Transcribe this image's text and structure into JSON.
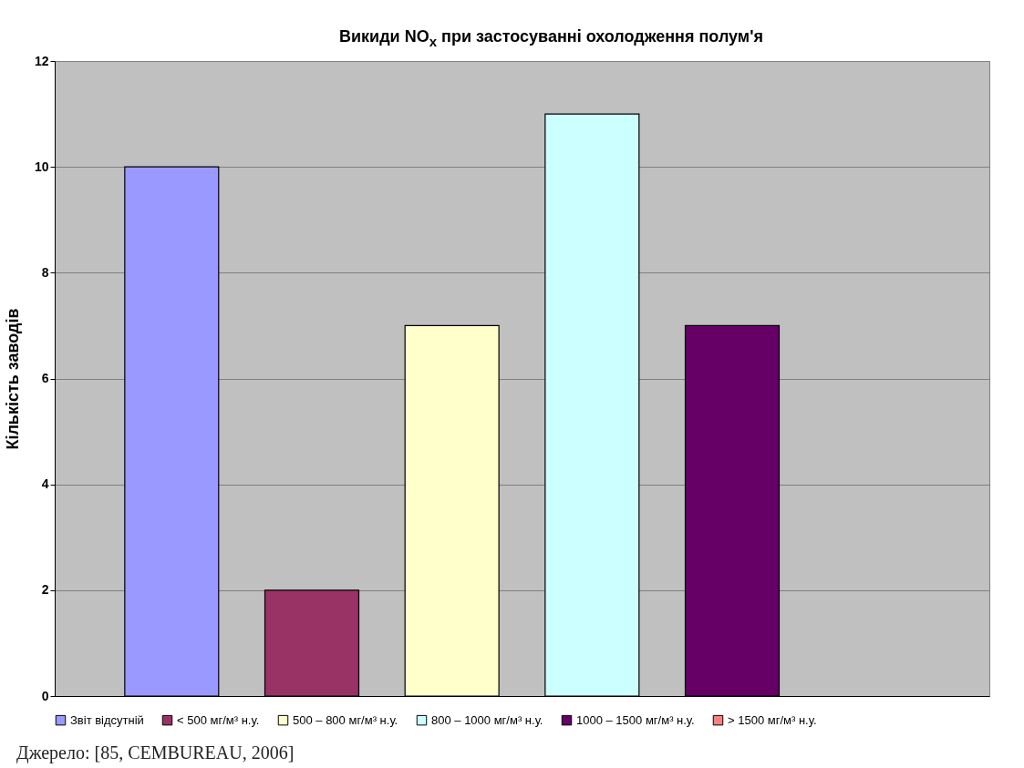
{
  "chart_data": {
    "type": "bar",
    "title": "Викиди NO$_{x}$ при застосуванні охолодження полум'я",
    "ylabel": "Кількість заводів",
    "categories": [
      null,
      null,
      null,
      null,
      null,
      null
    ],
    "series": [
      {
        "name": "Звіт відсутній",
        "color": "#9999ff",
        "values": [
          10,
          null,
          null,
          null,
          null,
          null
        ]
      },
      {
        "name": "< 500 мг/м³ н.у.",
        "color": "#993366",
        "values": [
          null,
          2,
          null,
          null,
          null,
          null
        ]
      },
      {
        "name": "500 – 800 мг/м³ н.у.",
        "color": "#ffffcc",
        "values": [
          null,
          null,
          7,
          null,
          null,
          null
        ]
      },
      {
        "name": "800 – 1000 мг/м³ н.у.",
        "color": "#ccffff",
        "values": [
          null,
          null,
          null,
          11,
          null,
          null
        ]
      },
      {
        "name": "1000 – 1500 мг/м³ н.у.",
        "color": "#660066",
        "values": [
          null,
          null,
          null,
          null,
          7,
          null
        ]
      },
      {
        "name": "> 1500 мг/м³ н.у.",
        "color": "#ff8080",
        "values": [
          null,
          null,
          null,
          null,
          null,
          null
        ]
      }
    ],
    "ylim": [
      0,
      12
    ],
    "yticks": [
      0,
      2,
      4,
      6,
      8,
      10,
      12
    ],
    "grid": "y",
    "legend": "bottom",
    "annotations": [
      "Джерело: [85, CEMBUREAU, 2006]"
    ]
  }
}
